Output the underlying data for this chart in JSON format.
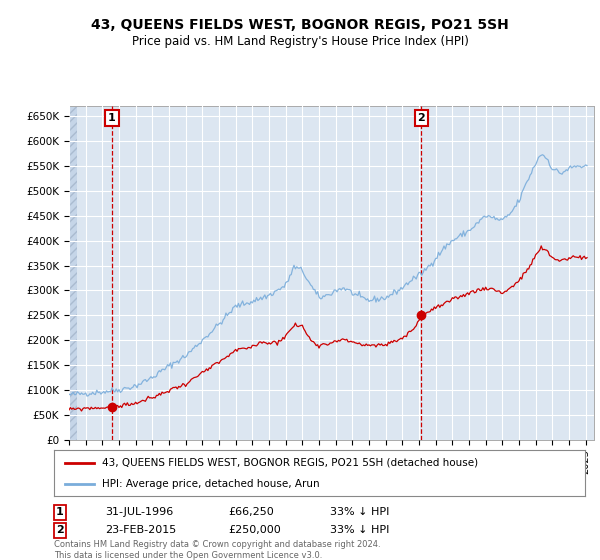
{
  "title": "43, QUEENS FIELDS WEST, BOGNOR REGIS, PO21 5SH",
  "subtitle": "Price paid vs. HM Land Registry's House Price Index (HPI)",
  "ylim": [
    0,
    670000
  ],
  "yticks": [
    0,
    50000,
    100000,
    150000,
    200000,
    250000,
    300000,
    350000,
    400000,
    450000,
    500000,
    550000,
    600000,
    650000
  ],
  "ytick_labels": [
    "£0",
    "£50K",
    "£100K",
    "£150K",
    "£200K",
    "£250K",
    "£300K",
    "£350K",
    "£400K",
    "£450K",
    "£500K",
    "£550K",
    "£600K",
    "£650K"
  ],
  "xlim_start": 1994.0,
  "xlim_end": 2025.5,
  "background_color": "#ffffff",
  "plot_bg_color": "#dce6f1",
  "grid_color": "#ffffff",
  "sale1_date": 1996.575,
  "sale1_price": 66250,
  "sale2_date": 2015.14,
  "sale2_price": 250000,
  "sale_color": "#cc0000",
  "hpi_color": "#7aaddb",
  "legend_label_sale": "43, QUEENS FIELDS WEST, BOGNOR REGIS, PO21 5SH (detached house)",
  "legend_label_hpi": "HPI: Average price, detached house, Arun",
  "footer": "Contains HM Land Registry data © Crown copyright and database right 2024.\nThis data is licensed under the Open Government Licence v3.0."
}
